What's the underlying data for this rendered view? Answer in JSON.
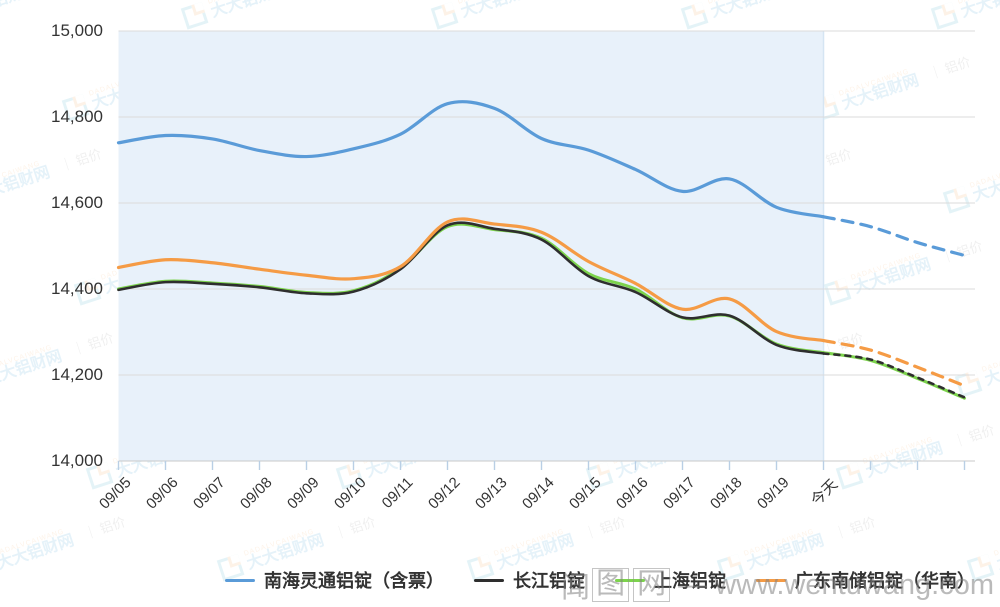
{
  "page": {
    "background": "#ffffff"
  },
  "chart_data": {
    "type": "line",
    "title": "",
    "xlabel": "",
    "ylabel": "",
    "categories": [
      "09/05",
      "09/06",
      "09/07",
      "09/08",
      "09/09",
      "09/10",
      "09/11",
      "09/12",
      "09/13",
      "09/14",
      "09/15",
      "09/16",
      "09/17",
      "09/18",
      "09/19",
      "今天"
    ],
    "future_unlabeled_ticks": 3,
    "ylim": [
      14000,
      15000
    ],
    "ytick_step": 200,
    "ytick_labels": [
      "15,000",
      "14,800",
      "14,600",
      "14,400",
      "14,200",
      "14,000"
    ],
    "grid_on": true,
    "legend_position": "bottom",
    "solid_until_index": 15,
    "shaded_region": {
      "from_index": 0,
      "to_index": 15,
      "color": "#E8F1FA",
      "edge_color": "#D5E5F3"
    },
    "axis_color": "#C9C9C9",
    "grid_color": "#DBDBDB",
    "tick_color": "#B9CFE5",
    "label_color": "#333333",
    "series": [
      {
        "name": "南海灵通铝锭（含票）",
        "color": "#5A9BD8",
        "width": 3.2,
        "forecast_dash": "11 8",
        "values": [
          14740,
          14757,
          14749,
          14722,
          14708,
          14726,
          14760,
          14831,
          14820,
          14750,
          14723,
          14678,
          14627,
          14656,
          14590,
          14568,
          14545,
          14508,
          14478
        ]
      },
      {
        "name": "长江铝锭",
        "color": "#2E2E2E",
        "width": 2.6,
        "forecast_dash": "5 6",
        "values": [
          14398,
          14416,
          14412,
          14404,
          14390,
          14394,
          14446,
          14548,
          14540,
          14515,
          14430,
          14393,
          14334,
          14338,
          14270,
          14250,
          14236,
          14194,
          14148
        ]
      },
      {
        "name": "上海铝锭",
        "color": "#7CD34C",
        "width": 3.0,
        "forecast_dash": "none",
        "values": [
          14400,
          14418,
          14414,
          14406,
          14392,
          14396,
          14448,
          14545,
          14538,
          14518,
          14436,
          14400,
          14333,
          14337,
          14272,
          14252,
          14234,
          14192,
          14146
        ]
      },
      {
        "name": "广东南储铝锭（华南）",
        "color": "#F59B45",
        "width": 3.2,
        "forecast_dash": "11 8",
        "values": [
          14450,
          14468,
          14461,
          14446,
          14432,
          14424,
          14452,
          14556,
          14551,
          14532,
          14464,
          14413,
          14353,
          14377,
          14301,
          14280,
          14258,
          14218,
          14175
        ]
      }
    ],
    "draw_order": [
      2,
      1,
      3,
      0
    ]
  },
  "brand_watermark": {
    "pinyin": "DADALVCAIWANG",
    "name": "大大铝财网",
    "suffix": "｜ 铝价"
  },
  "site_watermark": {
    "c1": "闻",
    "c2": "图",
    "c3": "网",
    "url": "— www.wentuwang.com"
  }
}
